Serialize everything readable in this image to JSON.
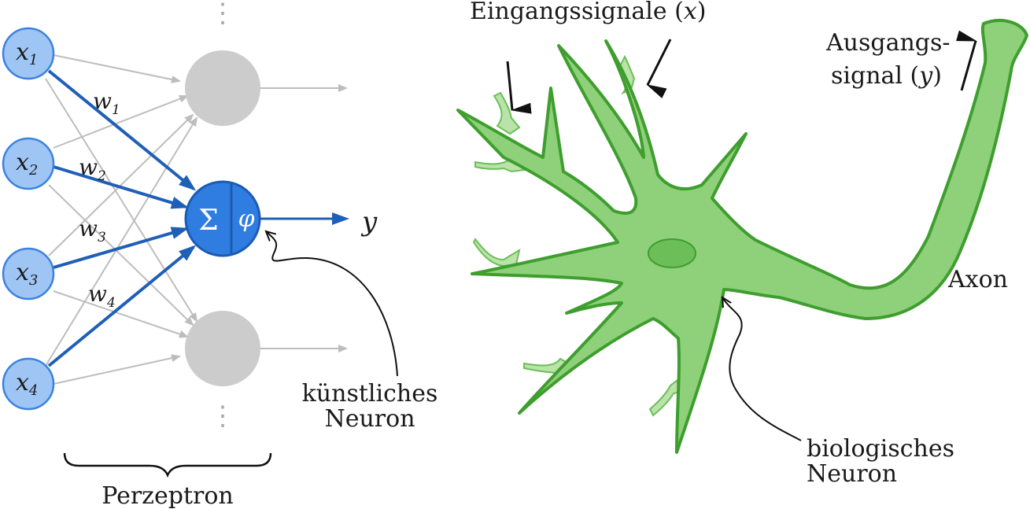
{
  "perceptron": {
    "inputs": [
      {
        "var": "x",
        "sub": "1"
      },
      {
        "var": "x",
        "sub": "2"
      },
      {
        "var": "x",
        "sub": "3"
      },
      {
        "var": "x",
        "sub": "4"
      }
    ],
    "weights": [
      {
        "var": "w",
        "sub": "1"
      },
      {
        "var": "w",
        "sub": "2"
      },
      {
        "var": "w",
        "sub": "3"
      },
      {
        "var": "w",
        "sub": "4"
      }
    ],
    "sum_symbol": "Σ",
    "activation_symbol": "φ",
    "output_symbol": "y",
    "dots": "⋮",
    "group_label": "Perzeptron",
    "neuron_label_line1": "künstliches",
    "neuron_label_line2": "Neuron"
  },
  "biology": {
    "input_label": "Eingangssignale (",
    "input_var": "x",
    "input_close": ")",
    "output_label_line1": "Ausgangs-",
    "output_label_line2": "signal (",
    "output_var": "y",
    "output_close": ")",
    "axon_label": "Axon",
    "neuron_label_line1": "biologisches",
    "neuron_label_line2": "Neuron"
  },
  "colors": {
    "input_fill": "#9ec5f4",
    "input_stroke": "#3b82e0",
    "neuron_fill": "#2f7de1",
    "neuron_stroke": "#1c5bb3",
    "weight_arrow": "#1f5fb8",
    "gray_node": "#cccccc",
    "gray_line": "#bdbdbd",
    "bio_fill": "#8fd07a",
    "bio_stroke": "#3e9e2e",
    "synapse_fill": "#b9e3a8"
  }
}
